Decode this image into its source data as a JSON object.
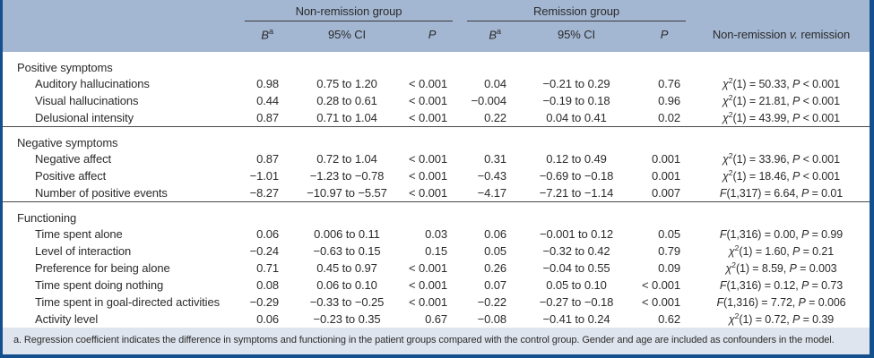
{
  "header": {
    "groups": [
      {
        "label": "Non-remission group"
      },
      {
        "label": "Remission group"
      }
    ],
    "columns": {
      "b": "B",
      "b_sup": "a",
      "ci": "95% CI",
      "p": "P",
      "comparison_pre": "Non-remission ",
      "comparison_v": "v.",
      "comparison_post": " remission"
    }
  },
  "sections": [
    {
      "label": "Positive symptoms",
      "rows": [
        {
          "label": "Auditory hallucinations",
          "non_remission": {
            "b": "0.98",
            "ci": "0.75 to 1.20",
            "p": "< 0.001"
          },
          "remission": {
            "b": "0.04",
            "ci": "−0.21 to 0.29",
            "p": "0.76"
          },
          "comparison": {
            "stat": "χ",
            "sup": "2",
            "args": "(1) = 50.33, ",
            "p_label": "P",
            "p_value": " < 0.001"
          }
        },
        {
          "label": "Visual hallucinations",
          "non_remission": {
            "b": "0.44",
            "ci": "0.28 to 0.61",
            "p": "< 0.001"
          },
          "remission": {
            "b": "−0.004",
            "ci": "−0.19 to 0.18",
            "p": "0.96"
          },
          "comparison": {
            "stat": "χ",
            "sup": "2",
            "args": "(1) = 21.81, ",
            "p_label": "P",
            "p_value": " < 0.001"
          }
        },
        {
          "label": "Delusional intensity",
          "non_remission": {
            "b": "0.87",
            "ci": "0.71 to 1.04",
            "p": "< 0.001"
          },
          "remission": {
            "b": "0.22",
            "ci": "0.04 to 0.41",
            "p": "0.02"
          },
          "comparison": {
            "stat": "χ",
            "sup": "2",
            "args": "(1) = 43.99, ",
            "p_label": "P",
            "p_value": " < 0.001"
          }
        }
      ]
    },
    {
      "label": "Negative symptoms",
      "rows": [
        {
          "label": "Negative affect",
          "non_remission": {
            "b": "0.87",
            "ci": "0.72 to 1.04",
            "p": "< 0.001"
          },
          "remission": {
            "b": "0.31",
            "ci": "0.12 to 0.49",
            "p": "0.001"
          },
          "comparison": {
            "stat": "χ",
            "sup": "2",
            "args": "(1) = 33.96, ",
            "p_label": "P",
            "p_value": " < 0.001"
          }
        },
        {
          "label": "Positive affect",
          "non_remission": {
            "b": "−1.01",
            "ci": "−1.23 to −0.78",
            "p": "< 0.001"
          },
          "remission": {
            "b": "−0.43",
            "ci": "−0.69 to −0.18",
            "p": "0.001"
          },
          "comparison": {
            "stat": "χ",
            "sup": "2",
            "args": "(1) = 18.46, ",
            "p_label": "P",
            "p_value": " < 0.001"
          }
        },
        {
          "label": "Number of positive events",
          "non_remission": {
            "b": "−8.27",
            "ci": "−10.97 to −5.57",
            "p": "< 0.001"
          },
          "remission": {
            "b": "−4.17",
            "ci": "−7.21 to −1.14",
            "p": "0.007"
          },
          "comparison": {
            "stat": "F",
            "sup": "",
            "args": "(1,317) = 6.64, ",
            "p_label": "P",
            "p_value": " = 0.01"
          }
        }
      ]
    },
    {
      "label": "Functioning",
      "rows": [
        {
          "label": "Time spent alone",
          "non_remission": {
            "b": "0.06",
            "ci": "0.006 to 0.11",
            "p": "0.03"
          },
          "remission": {
            "b": "0.06",
            "ci": "−0.001 to 0.12",
            "p": "0.05"
          },
          "comparison": {
            "stat": "F",
            "sup": "",
            "args": "(1,316) = 0.00, ",
            "p_label": "P",
            "p_value": " = 0.99"
          }
        },
        {
          "label": "Level of interaction",
          "non_remission": {
            "b": "−0.24",
            "ci": "−0.63 to 0.15",
            "p": "0.15"
          },
          "remission": {
            "b": "0.05",
            "ci": "−0.32 to 0.42",
            "p": "0.79"
          },
          "comparison": {
            "stat": "χ",
            "sup": "2",
            "args": "(1) = 1.60, ",
            "p_label": "P",
            "p_value": " = 0.21"
          }
        },
        {
          "label": "Preference for being alone",
          "non_remission": {
            "b": "0.71",
            "ci": "0.45 to 0.97",
            "p": "< 0.001"
          },
          "remission": {
            "b": "0.26",
            "ci": "−0.04 to 0.55",
            "p": "0.09"
          },
          "comparison": {
            "stat": "χ",
            "sup": "2",
            "args": "(1) = 8.59, ",
            "p_label": "P",
            "p_value": " = 0.003"
          }
        },
        {
          "label": "Time spent doing nothing",
          "non_remission": {
            "b": "0.08",
            "ci": "0.06 to 0.10",
            "p": "< 0.001"
          },
          "remission": {
            "b": "0.07",
            "ci": "0.05 to 0.10",
            "p": "< 0.001"
          },
          "comparison": {
            "stat": "F",
            "sup": "",
            "args": "(1,316) = 0.12, ",
            "p_label": "P",
            "p_value": " = 0.73"
          }
        },
        {
          "label": "Time spent in goal-directed activities",
          "non_remission": {
            "b": "−0.29",
            "ci": "−0.33 to −0.25",
            "p": "< 0.001"
          },
          "remission": {
            "b": "−0.22",
            "ci": "−0.27 to −0.18",
            "p": "< 0.001"
          },
          "comparison": {
            "stat": "F",
            "sup": "",
            "args": "(1,316) = 7.72, ",
            "p_label": "P",
            "p_value": " = 0.006"
          }
        },
        {
          "label": "Activity level",
          "non_remission": {
            "b": "0.06",
            "ci": "−0.23 to 0.35",
            "p": "0.67"
          },
          "remission": {
            "b": "−0.08",
            "ci": "−0.41 to 0.24",
            "p": "0.62"
          },
          "comparison": {
            "stat": "χ",
            "sup": "2",
            "args": "(1) = 0.72, ",
            "p_label": "P",
            "p_value": " = 0.39"
          }
        }
      ]
    }
  ],
  "footnote": "a. Regression coefficient indicates the difference in symptoms and functioning in the patient groups compared with the control group. Gender and age are included as confounders in the model.",
  "colors": {
    "header_bg": "#a3b6d2",
    "footnote_bg": "#dfe5ee",
    "border": "#15508e",
    "text": "#2b2b2b"
  }
}
